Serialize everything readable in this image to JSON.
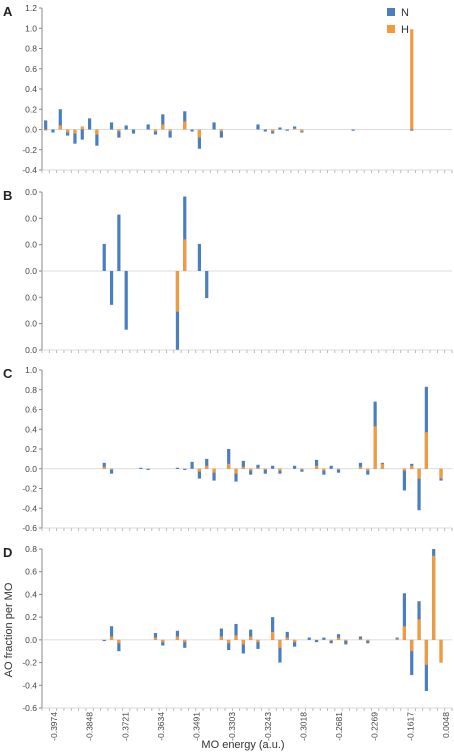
{
  "colors": {
    "N": "#4a7ebf",
    "H": "#f39a3c",
    "axis": "#888888"
  },
  "legend": [
    {
      "name": "N",
      "color": "#4a7ebf"
    },
    {
      "name": "H",
      "color": "#f39a3c"
    }
  ],
  "x_axis": {
    "label": "MO energy (a.u.)",
    "ticks": [
      "-0.3974",
      "-0.3848",
      "-0.3721",
      "-0.3634",
      "-0.3491",
      "-0.3303",
      "-0.3243",
      "-0.3018",
      "-0.2681",
      "-0.2269",
      "-0.1617",
      "0.0048"
    ]
  },
  "y_axis_label": "AO fraction per MO",
  "chart_data": [
    {
      "type": "bar",
      "panel": "A",
      "yticks": [
        "1.2",
        "1.0",
        "0.8",
        "0.6",
        "0.4",
        "0.2",
        "0.0",
        "-0.2",
        "-0.4"
      ],
      "ylim": [
        -0.4,
        1.2
      ],
      "bars": [
        {
          "x": 0,
          "n": 0.09,
          "h": -0.01
        },
        {
          "x": 1,
          "n": -0.03,
          "h": 0.0
        },
        {
          "x": 2,
          "n": 0.2,
          "h": 0.04
        },
        {
          "x": 3,
          "n": -0.06,
          "h": -0.03
        },
        {
          "x": 4,
          "n": -0.14,
          "h": -0.04
        },
        {
          "x": 5,
          "n": -0.1,
          "h": 0.03
        },
        {
          "x": 6,
          "n": 0.11,
          "h": 0.0
        },
        {
          "x": 7,
          "n": -0.16,
          "h": -0.05
        },
        {
          "x": 9,
          "n": 0.07,
          "h": 0.0
        },
        {
          "x": 10,
          "n": -0.08,
          "h": -0.02
        },
        {
          "x": 11,
          "n": 0.04,
          "h": 0.0
        },
        {
          "x": 12,
          "n": -0.04,
          "h": 0.0
        },
        {
          "x": 14,
          "n": 0.05,
          "h": 0.0
        },
        {
          "x": 15,
          "n": -0.05,
          "h": -0.02
        },
        {
          "x": 16,
          "n": 0.15,
          "h": 0.05
        },
        {
          "x": 17,
          "n": -0.08,
          "h": -0.02
        },
        {
          "x": 19,
          "n": 0.18,
          "h": 0.08
        },
        {
          "x": 20,
          "n": -0.02,
          "h": 0.0
        },
        {
          "x": 21,
          "n": -0.19,
          "h": -0.08
        },
        {
          "x": 23,
          "n": 0.07,
          "h": 0.0
        },
        {
          "x": 24,
          "n": -0.08,
          "h": -0.02
        },
        {
          "x": 29,
          "n": 0.05,
          "h": 0.0
        },
        {
          "x": 30,
          "n": -0.02,
          "h": 0.0
        },
        {
          "x": 31,
          "n": -0.04,
          "h": -0.02
        },
        {
          "x": 32,
          "n": 0.02,
          "h": 0.0
        },
        {
          "x": 33,
          "n": -0.01,
          "h": 0.0
        },
        {
          "x": 34,
          "n": 0.03,
          "h": 0.01
        },
        {
          "x": 35,
          "n": -0.03,
          "h": -0.02
        },
        {
          "x": 42,
          "n": 0.0,
          "h": 0.0
        },
        {
          "x": 50,
          "n": 0.0,
          "h": 0.99
        }
      ]
    },
    {
      "type": "bar",
      "panel": "B",
      "yticks": [
        "0.0",
        "0.0",
        "0.0",
        "0.0",
        "0.0",
        "0.0",
        "0.0"
      ],
      "ylim": [
        -3.5,
        3.5
      ],
      "bars": [
        {
          "x": 8,
          "n": 1.2,
          "h": 0.0
        },
        {
          "x": 9,
          "n": -1.5,
          "h": 0.0
        },
        {
          "x": 10,
          "n": 2.5,
          "h": 0.0
        },
        {
          "x": 11,
          "n": -2.6,
          "h": 0.0
        },
        {
          "x": 18,
          "n": -3.5,
          "h": -1.8
        },
        {
          "x": 19,
          "n": 3.3,
          "h": 1.4
        },
        {
          "x": 21,
          "n": 1.2,
          "h": 0.0
        },
        {
          "x": 22,
          "n": -1.2,
          "h": 0.0
        }
      ]
    },
    {
      "type": "bar",
      "panel": "C",
      "yticks": [
        "1.0",
        "0.8",
        "0.6",
        "0.4",
        "0.2",
        "0.0",
        "-0.2",
        "-0.4",
        "-0.6"
      ],
      "ylim": [
        -0.6,
        1.0
      ],
      "bars": [
        {
          "x": 8,
          "n": 0.06,
          "h": 0.02
        },
        {
          "x": 9,
          "n": -0.05,
          "h": -0.01
        },
        {
          "x": 13,
          "n": 0.01,
          "h": 0.0
        },
        {
          "x": 14,
          "n": -0.01,
          "h": 0.0
        },
        {
          "x": 18,
          "n": 0.01,
          "h": 0.0
        },
        {
          "x": 19,
          "n": -0.01,
          "h": 0.0
        },
        {
          "x": 20,
          "n": 0.07,
          "h": 0.0
        },
        {
          "x": 21,
          "n": -0.1,
          "h": -0.03
        },
        {
          "x": 22,
          "n": 0.1,
          "h": 0.03
        },
        {
          "x": 23,
          "n": -0.12,
          "h": -0.04
        },
        {
          "x": 25,
          "n": 0.2,
          "h": 0.05
        },
        {
          "x": 26,
          "n": -0.13,
          "h": -0.05
        },
        {
          "x": 27,
          "n": 0.08,
          "h": 0.02
        },
        {
          "x": 28,
          "n": -0.06,
          "h": -0.02
        },
        {
          "x": 29,
          "n": 0.04,
          "h": 0.01
        },
        {
          "x": 30,
          "n": -0.05,
          "h": -0.01
        },
        {
          "x": 31,
          "n": 0.03,
          "h": 0.0
        },
        {
          "x": 32,
          "n": -0.05,
          "h": -0.02
        },
        {
          "x": 34,
          "n": 0.03,
          "h": 0.0
        },
        {
          "x": 35,
          "n": -0.03,
          "h": -0.01
        },
        {
          "x": 37,
          "n": 0.09,
          "h": 0.03
        },
        {
          "x": 38,
          "n": -0.06,
          "h": -0.02
        },
        {
          "x": 39,
          "n": 0.03,
          "h": 0.0
        },
        {
          "x": 40,
          "n": -0.04,
          "h": -0.01
        },
        {
          "x": 43,
          "n": 0.06,
          "h": 0.02
        },
        {
          "x": 44,
          "n": -0.06,
          "h": -0.02
        },
        {
          "x": 45,
          "n": 0.68,
          "h": 0.43
        },
        {
          "x": 46,
          "n": 0.06,
          "h": 0.05
        },
        {
          "x": 49,
          "n": -0.22,
          "h": -0.02
        },
        {
          "x": 50,
          "n": 0.05,
          "h": 0.03
        },
        {
          "x": 51,
          "n": -0.42,
          "h": -0.1
        },
        {
          "x": 52,
          "n": 0.83,
          "h": 0.37
        },
        {
          "x": 54,
          "n": -0.12,
          "h": -0.1
        }
      ]
    },
    {
      "type": "bar",
      "panel": "D",
      "yticks": [
        "0.8",
        "0.6",
        "0.4",
        "0.2",
        "0.0",
        "-0.2",
        "-0.4",
        "-0.6"
      ],
      "ylim": [
        -0.6,
        0.8
      ],
      "bars": [
        {
          "x": 8,
          "n": 0.0,
          "h": 0.0
        },
        {
          "x": 9,
          "n": 0.12,
          "h": 0.03
        },
        {
          "x": 10,
          "n": -0.1,
          "h": -0.03
        },
        {
          "x": 15,
          "n": 0.06,
          "h": 0.02
        },
        {
          "x": 16,
          "n": -0.05,
          "h": -0.02
        },
        {
          "x": 18,
          "n": 0.08,
          "h": 0.03
        },
        {
          "x": 19,
          "n": -0.07,
          "h": -0.02
        },
        {
          "x": 24,
          "n": 0.1,
          "h": 0.03
        },
        {
          "x": 25,
          "n": -0.09,
          "h": -0.03
        },
        {
          "x": 26,
          "n": 0.14,
          "h": 0.04
        },
        {
          "x": 27,
          "n": -0.12,
          "h": -0.04
        },
        {
          "x": 28,
          "n": 0.09,
          "h": 0.03
        },
        {
          "x": 29,
          "n": -0.08,
          "h": -0.02
        },
        {
          "x": 31,
          "n": 0.2,
          "h": 0.07
        },
        {
          "x": 32,
          "n": -0.2,
          "h": -0.07
        },
        {
          "x": 33,
          "n": 0.07,
          "h": 0.02
        },
        {
          "x": 34,
          "n": -0.06,
          "h": -0.02
        },
        {
          "x": 36,
          "n": 0.02,
          "h": 0.0
        },
        {
          "x": 37,
          "n": -0.02,
          "h": 0.0
        },
        {
          "x": 38,
          "n": 0.02,
          "h": 0.0
        },
        {
          "x": 39,
          "n": -0.03,
          "h": -0.01
        },
        {
          "x": 40,
          "n": 0.05,
          "h": 0.02
        },
        {
          "x": 41,
          "n": -0.04,
          "h": -0.01
        },
        {
          "x": 43,
          "n": 0.03,
          "h": 0.01
        },
        {
          "x": 44,
          "n": -0.03,
          "h": -0.01
        },
        {
          "x": 48,
          "n": 0.02,
          "h": 0.01
        },
        {
          "x": 49,
          "n": 0.41,
          "h": 0.12
        },
        {
          "x": 50,
          "n": -0.31,
          "h": -0.1
        },
        {
          "x": 51,
          "n": 0.34,
          "h": 0.18
        },
        {
          "x": 52,
          "n": -0.45,
          "h": -0.22
        },
        {
          "x": 53,
          "n": 0.8,
          "h": 0.74
        },
        {
          "x": 54,
          "n": -0.2,
          "h": -0.2
        }
      ]
    }
  ]
}
